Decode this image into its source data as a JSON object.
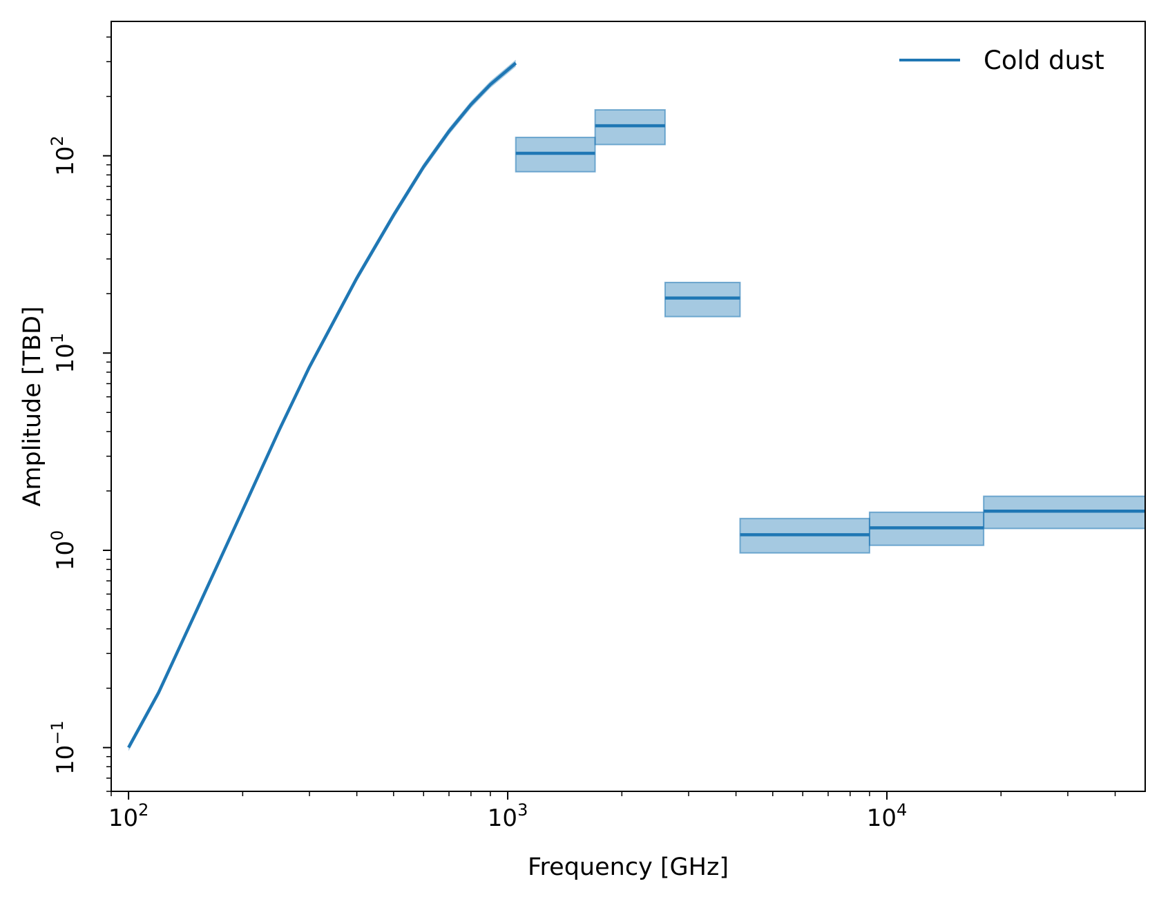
{
  "chart_data": {
    "type": "line",
    "title": "",
    "xlabel": "Frequency [GHz]",
    "ylabel": "Amplitude [TBD]",
    "xscale": "log",
    "yscale": "log",
    "xlim": [
      90,
      48000
    ],
    "ylim": [
      0.06,
      480
    ],
    "grid": false,
    "legend": {
      "position": "top-right",
      "entries": [
        {
          "name": "Cold dust",
          "color": "#1f77b4"
        }
      ]
    },
    "xticks": [
      {
        "value": 100,
        "base": "10",
        "exp": "2"
      },
      {
        "value": 1000,
        "base": "10",
        "exp": "3"
      },
      {
        "value": 10000,
        "base": "10",
        "exp": "4"
      }
    ],
    "yticks": [
      {
        "value": 0.1,
        "base": "10",
        "exp": "−1"
      },
      {
        "value": 1,
        "base": "10",
        "exp": "0"
      },
      {
        "value": 10,
        "base": "10",
        "exp": "1"
      },
      {
        "value": 100,
        "base": "10",
        "exp": "2"
      }
    ],
    "series": [
      {
        "name": "Cold dust",
        "color": "#1f77b4",
        "band_color": "#1f77b4",
        "curve": {
          "x": [
            100,
            120,
            150,
            200,
            250,
            300,
            400,
            500,
            600,
            700,
            800,
            900,
            1050
          ],
          "y": [
            0.1,
            0.19,
            0.48,
            1.6,
            4.1,
            8.5,
            24,
            50,
            88,
            133,
            182,
            230,
            295
          ],
          "band_frac": 0.04
        },
        "bands": [
          {
            "x0": 1050,
            "x1": 1700,
            "y": 103,
            "ylo": 83,
            "yhi": 124
          },
          {
            "x0": 1700,
            "x1": 2600,
            "y": 142,
            "ylo": 114,
            "yhi": 171
          },
          {
            "x0": 2600,
            "x1": 4100,
            "y": 19,
            "ylo": 15.3,
            "yhi": 22.8
          },
          {
            "x0": 4100,
            "x1": 9000,
            "y": 1.2,
            "ylo": 0.97,
            "yhi": 1.45
          },
          {
            "x0": 9000,
            "x1": 18000,
            "y": 1.3,
            "ylo": 1.06,
            "yhi": 1.56
          },
          {
            "x0": 18000,
            "x1": 48000,
            "y": 1.58,
            "ylo": 1.29,
            "yhi": 1.88
          }
        ]
      }
    ]
  }
}
